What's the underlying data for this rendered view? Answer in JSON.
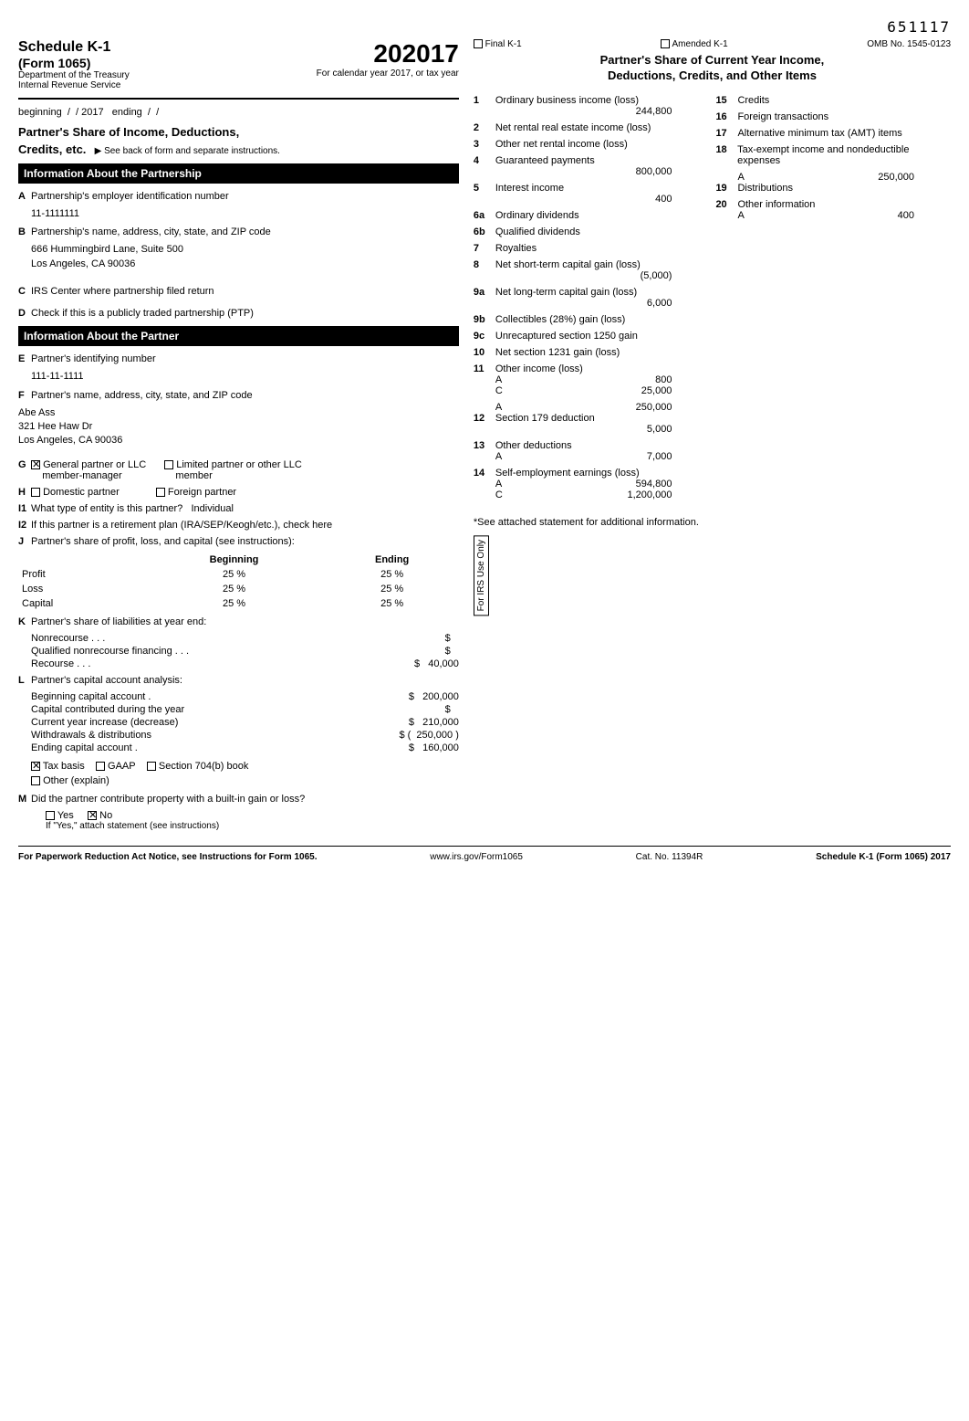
{
  "barcode": "651117",
  "header": {
    "schedule": "Schedule K-1",
    "form": "(Form 1065)",
    "dept1": "Department of the Treasury",
    "dept2": "Internal Revenue Service",
    "year_big": "2017",
    "cal_line": "For calendar year 2017, or tax year",
    "beginning": "beginning",
    "ending_lbl": "ending",
    "yr": "/ 2017"
  },
  "right_header": {
    "final": "Final K-1",
    "amended": "Amended K-1",
    "omb": "OMB No. 1545-0123",
    "share_l1": "Partner's Share of Current Year Income,",
    "share_l2": "Deductions, Credits, and Other Items"
  },
  "left": {
    "share_title": "Partner's Share of Income, Deductions,",
    "share_title2": "Credits, etc.",
    "seeback": "▶ See back of form and separate instructions.",
    "info_pship": "Information About the Partnership",
    "A": "Partnership's employer identification number",
    "A_val": "11-1111111",
    "B": "Partnership's name, address, city, state, and ZIP code",
    "B_l1": "666 Hummingbird Lane, Suite 500",
    "B_l2": "Los Angeles, CA 90036",
    "C": "IRS Center where partnership filed return",
    "D": "Check if this is a publicly traded partnership (PTP)",
    "info_partner": "Information About the Partner",
    "E": "Partner's identifying number",
    "E_val": "111-11-1111",
    "F": "Partner's name, address, city, state, and ZIP code",
    "F_l1": "Abe Ass",
    "F_l2": "321 Hee Haw Dr",
    "F_l3": "Los Angeles, CA 90036",
    "G_gen": "General partner or LLC",
    "G_gen2": "member-manager",
    "G_lim": "Limited partner or other LLC",
    "G_lim2": "member",
    "H_dom": "Domestic partner",
    "H_for": "Foreign partner",
    "I1": "What type of entity is this partner?",
    "I1_val": "Individual",
    "I2": "If this partner is a retirement plan (IRA/SEP/Keogh/etc.), check here",
    "J": "Partner's share of profit, loss, and capital (see instructions):",
    "J_begin": "Beginning",
    "J_end": "Ending",
    "J_rows": [
      {
        "label": "Profit",
        "b": "25",
        "e": "25"
      },
      {
        "label": "Loss",
        "b": "25",
        "e": "25"
      },
      {
        "label": "Capital",
        "b": "25",
        "e": "25"
      }
    ],
    "K": "Partner's share of liabilities at year end:",
    "K_rows": [
      {
        "label": "Nonrecourse",
        "val": ""
      },
      {
        "label": "Qualified nonrecourse financing",
        "val": ""
      },
      {
        "label": "Recourse",
        "val": "40,000"
      }
    ],
    "L": "Partner's capital account analysis:",
    "L_rows": [
      {
        "label": "Beginning capital account .",
        "val": "200,000",
        "neg": false
      },
      {
        "label": "Capital contributed during the year",
        "val": "",
        "neg": false
      },
      {
        "label": "Current year increase (decrease)",
        "val": "210,000",
        "neg": false
      },
      {
        "label": "Withdrawals & distributions",
        "val": "250,000",
        "neg": true
      },
      {
        "label": "Ending capital account .",
        "val": "160,000",
        "neg": false
      }
    ],
    "L_tax": "Tax basis",
    "L_gaap": "GAAP",
    "L_704": "Section 704(b) book",
    "L_other": "Other (explain)",
    "M": "Did the partner contribute property with a built-in gain or loss?",
    "M_yes": "Yes",
    "M_no": "No",
    "M_note": "If \"Yes,\" attach statement (see instructions)"
  },
  "right": {
    "col1": [
      {
        "n": "1",
        "t": "Ordinary business income (loss)",
        "v": "244,800"
      },
      {
        "n": "2",
        "t": "Net rental real estate income (loss)",
        "v": ""
      },
      {
        "n": "3",
        "t": "Other net rental income (loss)",
        "v": ""
      },
      {
        "n": "4",
        "t": "Guaranteed payments",
        "v": "800,000"
      },
      {
        "n": "5",
        "t": "Interest income",
        "v": "400"
      },
      {
        "n": "6a",
        "t": "Ordinary dividends",
        "v": ""
      },
      {
        "n": "6b",
        "t": "Qualified dividends",
        "v": ""
      },
      {
        "n": "7",
        "t": "Royalties",
        "v": ""
      },
      {
        "n": "8",
        "t": "Net short-term capital gain (loss)",
        "v": "(5,000)"
      },
      {
        "n": "9a",
        "t": "Net long-term capital gain (loss)",
        "v": "6,000"
      },
      {
        "n": "9b",
        "t": "Collectibles (28%) gain (loss)",
        "v": ""
      },
      {
        "n": "9c",
        "t": "Unrecaptured section 1250 gain",
        "v": ""
      },
      {
        "n": "10",
        "t": "Net section 1231 gain (loss)",
        "v": ""
      },
      {
        "n": "11",
        "t": "Other income (loss)",
        "subs": [
          {
            "c": "A",
            "v": "800"
          },
          {
            "c": "C",
            "v": "25,000"
          }
        ]
      },
      {
        "n": "12",
        "t": "Section 179 deduction",
        "v": "5,000",
        "subs": [
          {
            "c": "A",
            "v": "250,000"
          }
        ],
        "subs_above": true
      },
      {
        "n": "13",
        "t": "Other deductions",
        "subs": [
          {
            "c": "A",
            "v": "7,000"
          }
        ]
      },
      {
        "n": "14",
        "t": "Self-employment earnings (loss)",
        "subs": [
          {
            "c": "A",
            "v": "594,800"
          },
          {
            "c": "C",
            "v": "1,200,000"
          }
        ]
      }
    ],
    "col2": [
      {
        "n": "15",
        "t": "Credits",
        "v": ""
      },
      {
        "n": "16",
        "t": "Foreign transactions",
        "v": ""
      },
      {
        "n": "17",
        "t": "Alternative minimum tax (AMT) items",
        "v": ""
      },
      {
        "n": "18",
        "t": "Tax-exempt income and nondeductible expenses",
        "v": ""
      },
      {
        "n": "19",
        "t": "Distributions",
        "subs": [
          {
            "c": "A",
            "v": "250,000"
          }
        ],
        "subs_above": true
      },
      {
        "n": "20",
        "t": "Other information",
        "subs": [
          {
            "c": "A",
            "v": "400"
          }
        ]
      }
    ],
    "see_attached": "*See attached statement for additional information.",
    "irs_only": "For IRS Use Only"
  },
  "footer": {
    "l": "For Paperwork Reduction Act Notice, see Instructions for Form 1065.",
    "c": "www.irs.gov/Form1065",
    "r1": "Cat. No. 11394R",
    "r2": "Schedule K-1 (Form 1065) 2017"
  }
}
